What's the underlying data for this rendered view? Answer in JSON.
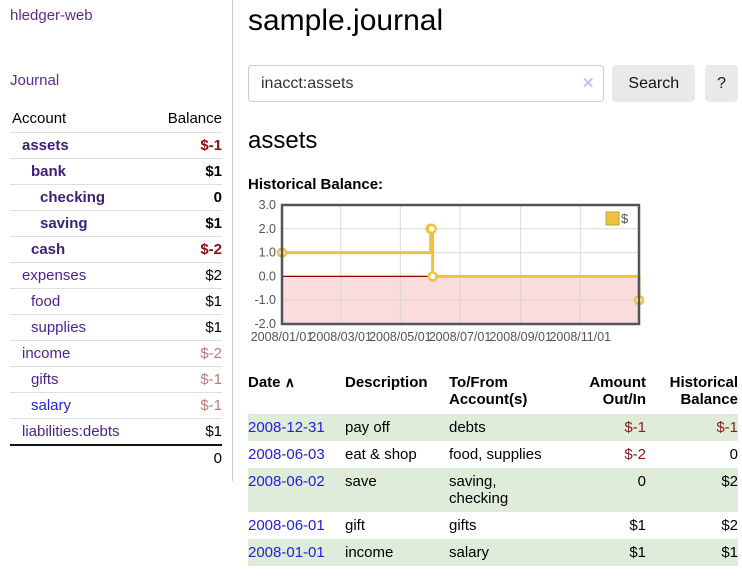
{
  "sidebar": {
    "brand": "hledger-web",
    "journal_link": "Journal",
    "accounts": {
      "col_account": "Account",
      "col_balance": "Balance",
      "rows": [
        {
          "name": "assets",
          "balance": "$-1"
        },
        {
          "name": "bank",
          "balance": "$1"
        },
        {
          "name": "checking",
          "balance": "0"
        },
        {
          "name": "saving",
          "balance": "$1"
        },
        {
          "name": "cash",
          "balance": "$-2"
        },
        {
          "name": "expenses",
          "balance": "$2"
        },
        {
          "name": "food",
          "balance": "$1"
        },
        {
          "name": "supplies",
          "balance": "$1"
        },
        {
          "name": "income",
          "balance": "$-2"
        },
        {
          "name": "gifts",
          "balance": "$-1"
        },
        {
          "name": "salary",
          "balance": "$-1"
        },
        {
          "name": "liabilities:debts",
          "balance": "$1"
        }
      ],
      "total": "0"
    }
  },
  "header": {
    "title": "sample.journal"
  },
  "search": {
    "value": "inacct:assets",
    "search_label": "Search",
    "help_label": "?"
  },
  "icons": {
    "clear": "✕",
    "sort_asc": "∧"
  },
  "main": {
    "account_heading": "assets",
    "chart_label": "Historical Balance:"
  },
  "chart_data": {
    "type": "line",
    "title": "Historical Balance",
    "steps": true,
    "xrange": [
      "2008-01-01",
      "2008-12-31"
    ],
    "ylim": [
      -2,
      3
    ],
    "yticks": [
      3,
      2,
      1,
      0,
      -1,
      -2
    ],
    "xticks": [
      {
        "date": "2008-01-01",
        "label": "2008/01/01"
      },
      {
        "date": "2008-03-01",
        "label": "2008/03/01"
      },
      {
        "date": "2008-05-01",
        "label": "2008/05/01"
      },
      {
        "date": "2008-07-01",
        "label": "2008/07/01"
      },
      {
        "date": "2008-09-01",
        "label": "2008/09/01"
      },
      {
        "date": "2008-11-01",
        "label": "2008/11/01"
      }
    ],
    "series": [
      {
        "name": "$",
        "color": "#EDC240",
        "points": [
          {
            "date": "2008-01-01",
            "value": 1
          },
          {
            "date": "2008-06-01",
            "value": 2
          },
          {
            "date": "2008-06-02",
            "value": 2
          },
          {
            "date": "2008-06-03",
            "value": 0
          },
          {
            "date": "2008-12-31",
            "value": -1
          }
        ]
      }
    ],
    "legend": {
      "label": "$",
      "position": "top-right"
    },
    "colors": {
      "line": "#EDC240",
      "marker_fill": "#ffffff",
      "negative_region": "#fbdcdc",
      "zero_line": "#8b0000",
      "grid": "#d4d4d4",
      "border": "#545454",
      "tick_text": "#545454"
    }
  },
  "register": {
    "headers": {
      "date": "Date",
      "description": "Description",
      "accounts": "To/From Account(s)",
      "amount": "Amount Out/In",
      "balance": "Historical Balance"
    },
    "rows": [
      {
        "date": "2008-12-31",
        "description": "pay off",
        "accounts": "debts",
        "amount": "$-1",
        "balance": "$-1"
      },
      {
        "date": "2008-06-03",
        "description": "eat & shop",
        "accounts": "food, supplies",
        "amount": "$-2",
        "balance": "0"
      },
      {
        "date": "2008-06-02",
        "description": "save",
        "accounts": "saving, checking",
        "amount": "0",
        "balance": "$2"
      },
      {
        "date": "2008-06-01",
        "description": "gift",
        "accounts": "gifts",
        "amount": "$1",
        "balance": "$2"
      },
      {
        "date": "2008-01-01",
        "description": "income",
        "accounts": "salary",
        "amount": "$1",
        "balance": "$1"
      }
    ]
  }
}
